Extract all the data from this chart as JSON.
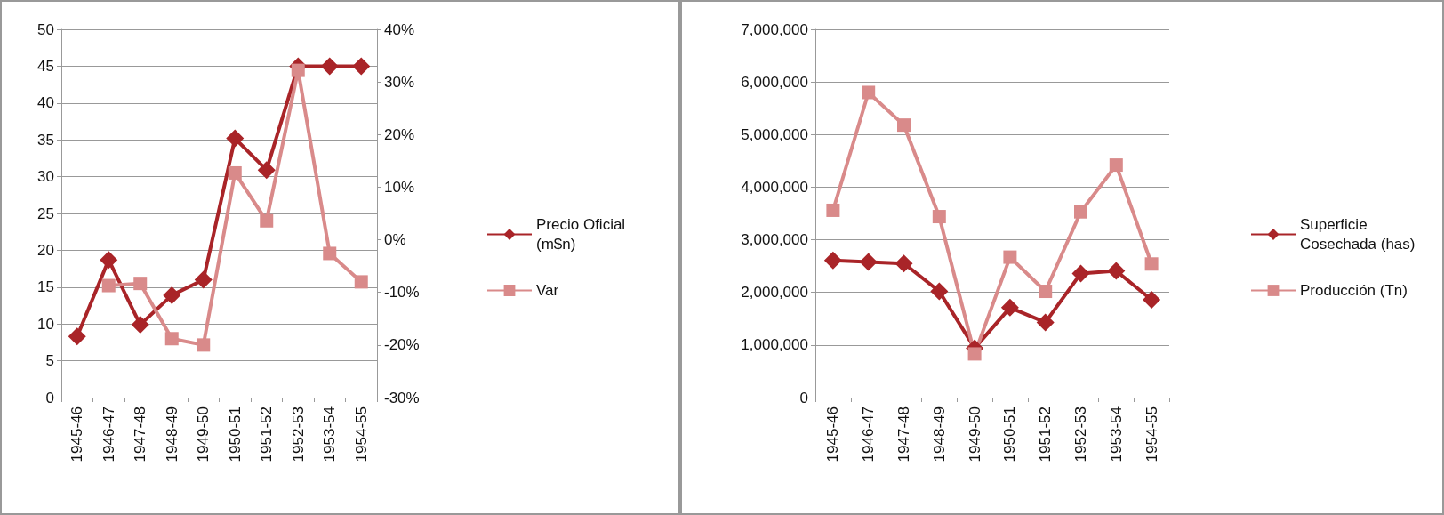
{
  "chart_data": [
    {
      "type": "line",
      "categories": [
        "1945-46",
        "1946-47",
        "1947-48",
        "1948-49",
        "1949-50",
        "1950-51",
        "1951-52",
        "1952-53",
        "1953-54",
        "1954-55"
      ],
      "series": [
        {
          "name": "Precio Oficial (m$n)",
          "color": "#a92428",
          "marker": "diamond",
          "values": [
            8.3,
            18.7,
            9.9,
            13.9,
            16,
            35.2,
            30.9,
            45,
            45,
            45
          ]
        },
        {
          "name": "Var",
          "color": "#d98a8a",
          "marker": "square",
          "axis": "y2",
          "values": [
            null,
            -8.7,
            -8.3,
            -18.8,
            -20,
            12.7,
            3.6,
            32.2,
            -2.6,
            -8
          ]
        }
      ],
      "ylim": [
        0,
        50
      ],
      "yticks": [
        0,
        5,
        10,
        15,
        20,
        25,
        30,
        35,
        40,
        45,
        50
      ],
      "y2lim": [
        -30,
        40
      ],
      "y2ticks": [
        {
          "value": -30,
          "label": "-30%"
        },
        {
          "value": -20,
          "label": "-20%"
        },
        {
          "value": -10,
          "label": "-10%"
        },
        {
          "value": 0,
          "label": "0%"
        },
        {
          "value": 10,
          "label": "10%"
        },
        {
          "value": 20,
          "label": "20%"
        },
        {
          "value": 30,
          "label": "30%"
        },
        {
          "value": 40,
          "label": "40%"
        }
      ],
      "grid": "y",
      "legend": "right"
    },
    {
      "type": "line",
      "categories": [
        "1945-46",
        "1946-47",
        "1947-48",
        "1948-49",
        "1949-50",
        "1950-51",
        "1951-52",
        "1952-53",
        "1953-54",
        "1954-55"
      ],
      "series": [
        {
          "name": "Superficie Cosechada (has)",
          "color": "#a92428",
          "marker": "diamond",
          "values": [
            2610000,
            2580000,
            2550000,
            2020000,
            940000,
            1710000,
            1430000,
            2360000,
            2410000,
            1860000
          ]
        },
        {
          "name": "Producción (Tn)",
          "color": "#d98a8a",
          "marker": "square",
          "values": [
            3560000,
            5800000,
            5180000,
            3440000,
            830000,
            2670000,
            2020000,
            3530000,
            4420000,
            2540000
          ]
        }
      ],
      "ylim": [
        0,
        7000000
      ],
      "yticks": [
        {
          "value": 0,
          "label": "0"
        },
        {
          "value": 1000000,
          "label": "1,000,000"
        },
        {
          "value": 2000000,
          "label": "2,000,000"
        },
        {
          "value": 3000000,
          "label": "3,000,000"
        },
        {
          "value": 4000000,
          "label": "4,000,000"
        },
        {
          "value": 5000000,
          "label": "5,000,000"
        },
        {
          "value": 6000000,
          "label": "6,000,000"
        },
        {
          "value": 7000000,
          "label": "7,000,000"
        }
      ],
      "grid": "y",
      "legend": "right"
    }
  ]
}
